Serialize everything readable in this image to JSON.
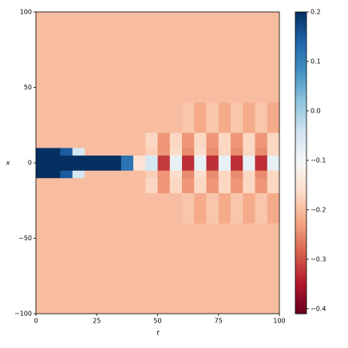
{
  "chart_data": {
    "type": "heatmap",
    "xlabel": "t",
    "ylabel": "x",
    "colormap": "RdBu",
    "xlim": [
      0,
      100
    ],
    "ylim": [
      -100,
      100
    ],
    "xticks": [
      0,
      25,
      50,
      75,
      100
    ],
    "yticks": [
      100,
      50,
      0,
      {
        "value": -50,
        "label": "−50"
      },
      {
        "value": -100,
        "label": "−100"
      }
    ],
    "clim": [
      -0.41,
      0.2
    ],
    "cticks": [
      0.2,
      0.1,
      {
        "value": 0,
        "label": "0.0"
      },
      {
        "value": -0.1,
        "label": "−0.1"
      },
      {
        "value": -0.2,
        "label": "−0.2"
      },
      {
        "value": -0.3,
        "label": "−0.3"
      },
      {
        "value": -0.4,
        "label": "−0.4"
      }
    ],
    "x_edges": [
      0,
      5,
      10,
      15,
      20,
      25,
      30,
      35,
      40,
      45,
      50,
      55,
      60,
      65,
      70,
      75,
      80,
      85,
      90,
      95,
      100
    ],
    "y_edges": [
      -100,
      -40,
      -20,
      -10,
      -5,
      0,
      5,
      10,
      20,
      40,
      100
    ],
    "values": [
      [
        -0.2,
        -0.2,
        -0.2,
        -0.2,
        -0.2,
        -0.2,
        -0.2,
        -0.2,
        -0.2,
        -0.2,
        -0.2,
        -0.2,
        -0.2,
        -0.2,
        -0.2,
        -0.2,
        -0.2,
        -0.2,
        -0.2,
        -0.2
      ],
      [
        -0.2,
        -0.2,
        -0.2,
        -0.2,
        -0.2,
        -0.2,
        -0.2,
        -0.2,
        -0.2,
        -0.2,
        -0.2,
        -0.2,
        -0.19,
        -0.22,
        -0.19,
        -0.22,
        -0.19,
        -0.22,
        -0.19,
        -0.22
      ],
      [
        -0.2,
        -0.2,
        -0.2,
        -0.2,
        -0.2,
        -0.2,
        -0.2,
        -0.2,
        -0.2,
        -0.17,
        -0.24,
        -0.17,
        -0.24,
        -0.17,
        -0.24,
        -0.17,
        -0.24,
        -0.17,
        -0.24,
        -0.17
      ],
      [
        0.2,
        0.2,
        0.15,
        -0.05,
        -0.2,
        -0.2,
        -0.2,
        -0.2,
        -0.2,
        -0.18,
        -0.24,
        -0.16,
        -0.25,
        -0.16,
        -0.25,
        -0.17,
        -0.25,
        -0.17,
        -0.25,
        -0.17
      ],
      [
        0.2,
        0.2,
        0.2,
        0.2,
        0.2,
        0.2,
        0.2,
        0.12,
        -0.15,
        -0.05,
        -0.32,
        -0.08,
        -0.33,
        -0.08,
        -0.33,
        -0.08,
        -0.33,
        -0.08,
        -0.33,
        -0.08
      ],
      [
        0.2,
        0.2,
        0.2,
        0.2,
        0.2,
        0.2,
        0.2,
        0.12,
        -0.15,
        -0.05,
        -0.32,
        -0.08,
        -0.33,
        -0.08,
        -0.33,
        -0.08,
        -0.33,
        -0.08,
        -0.33,
        -0.08
      ],
      [
        0.2,
        0.2,
        0.15,
        -0.05,
        -0.2,
        -0.2,
        -0.2,
        -0.2,
        -0.2,
        -0.18,
        -0.24,
        -0.16,
        -0.25,
        -0.16,
        -0.25,
        -0.17,
        -0.25,
        -0.17,
        -0.25,
        -0.17
      ],
      [
        -0.2,
        -0.2,
        -0.2,
        -0.2,
        -0.2,
        -0.2,
        -0.2,
        -0.2,
        -0.2,
        -0.17,
        -0.24,
        -0.17,
        -0.24,
        -0.17,
        -0.24,
        -0.17,
        -0.24,
        -0.17,
        -0.24,
        -0.17
      ],
      [
        -0.2,
        -0.2,
        -0.2,
        -0.2,
        -0.2,
        -0.2,
        -0.2,
        -0.2,
        -0.2,
        -0.2,
        -0.2,
        -0.2,
        -0.19,
        -0.22,
        -0.19,
        -0.22,
        -0.19,
        -0.22,
        -0.19,
        -0.22
      ],
      [
        -0.2,
        -0.2,
        -0.2,
        -0.2,
        -0.2,
        -0.2,
        -0.2,
        -0.2,
        -0.2,
        -0.2,
        -0.2,
        -0.2,
        -0.2,
        -0.2,
        -0.2,
        -0.2,
        -0.2,
        -0.2,
        -0.2,
        -0.2
      ]
    ]
  }
}
